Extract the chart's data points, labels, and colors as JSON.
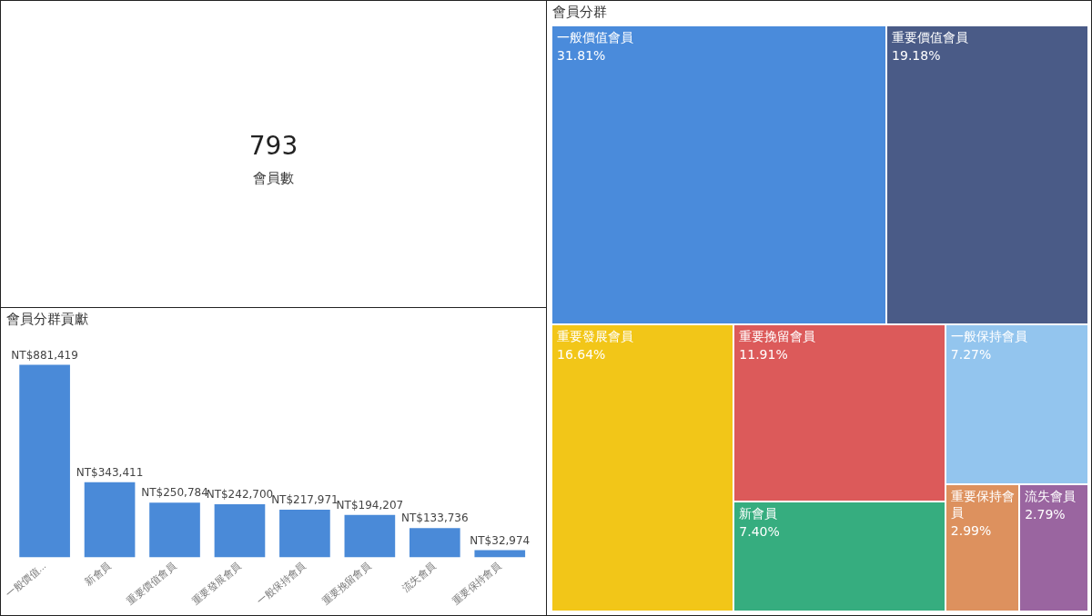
{
  "chart_data": [
    {
      "type": "other",
      "title": "793",
      "subtitle": "會員數"
    },
    {
      "type": "bar",
      "title": "會員分群貢獻",
      "categories": [
        "一般價值...",
        "新會員",
        "重要價值會員",
        "重要發展會員",
        "一般保持會員",
        "重要挽留會員",
        "流失會員",
        "重要保持會員"
      ],
      "values": [
        881419,
        343411,
        250784,
        242700,
        217971,
        194207,
        133736,
        32974
      ],
      "value_labels": [
        "NT$881,419",
        "NT$343,411",
        "NT$250,784",
        "NT$242,700",
        "NT$217,971",
        "NT$194,207",
        "NT$133,736",
        "NT$32,974"
      ],
      "color": "#4a8ad8",
      "tick_labels": "x",
      "grid": false,
      "legend": false
    },
    {
      "type": "other",
      "title": "會員分群",
      "categories": [
        "一般價值會員",
        "重要價值會員",
        "重要發展會員",
        "重要挽留會員",
        "新會員",
        "一般保持會員",
        "重要保持會員",
        "流失會員"
      ],
      "values": [
        31.81,
        19.18,
        16.64,
        11.91,
        7.4,
        7.27,
        2.99,
        2.79
      ],
      "value_labels": [
        "31.81%",
        "19.18%",
        "16.64%",
        "11.91%",
        "7.40%",
        "7.27%",
        "2.99%",
        "2.79%"
      ],
      "colors": [
        "#4a8bdb",
        "#4a5b87",
        "#f2c618",
        "#dc5a5a",
        "#36ad7f",
        "#93c5ee",
        "#dd915e",
        "#9a65a0"
      ]
    }
  ]
}
